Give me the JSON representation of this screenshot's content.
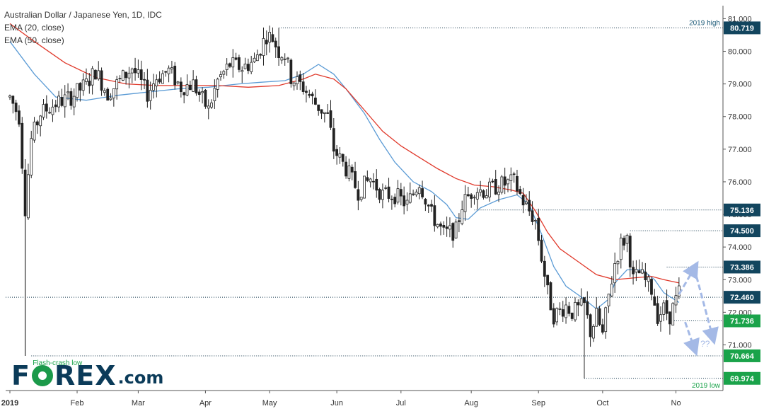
{
  "colors": {
    "ema20": "#5b9bd5",
    "ema50": "#e0392b",
    "level_dark": "#12455e",
    "level_green": "#1aa34a",
    "forecast_arrow": "#a4b9e6",
    "candle": "#222222",
    "grid_dotted": "#15384d"
  },
  "legend": {
    "title": "Australian Dollar / Japanese Yen, 1D, IDC",
    "ema20": "EMA (20, close)",
    "ema50": "EMA (50, close)"
  },
  "logo": {
    "text_left": "F",
    "text_right": "REX",
    "dotcom": ".com"
  },
  "chart_data": {
    "type": "candlestick",
    "title": "Australian Dollar / Japanese Yen, 1D, IDC",
    "y_axis_ticks": [
      "81.000",
      "80.000",
      "79.000",
      "78.000",
      "77.000",
      "76.000",
      "75.000",
      "74.000",
      "73.000",
      "72.000",
      "71.000"
    ],
    "ylim": [
      69.6,
      81.4
    ],
    "x_axis_ticks": [
      "2019",
      "Feb",
      "Mar",
      "Apr",
      "May",
      "Jun",
      "Jul",
      "Aug",
      "Sep",
      "Oct",
      "No"
    ],
    "series": [
      {
        "name": "EMA (20, close)",
        "values": [
          [
            0,
            80.3
          ],
          [
            8,
            79.3
          ],
          [
            15,
            78.6
          ],
          [
            25,
            78.5
          ],
          [
            35,
            78.65
          ],
          [
            45,
            78.75
          ],
          [
            55,
            78.85
          ],
          [
            65,
            78.9
          ],
          [
            75,
            79.0
          ],
          [
            82,
            79.05
          ],
          [
            90,
            79.1
          ],
          [
            96,
            79.3
          ],
          [
            101,
            79.6
          ],
          [
            106,
            79.3
          ],
          [
            110,
            78.85
          ],
          [
            116,
            78.1
          ],
          [
            121,
            77.3
          ],
          [
            126,
            76.6
          ],
          [
            132,
            76.0
          ],
          [
            138,
            75.7
          ],
          [
            143,
            75.3
          ],
          [
            146,
            74.9
          ],
          [
            150,
            74.85
          ],
          [
            154,
            75.2
          ],
          [
            160,
            75.45
          ],
          [
            166,
            75.6
          ],
          [
            170,
            75.3
          ],
          [
            174,
            74.4
          ],
          [
            178,
            73.4
          ],
          [
            182,
            72.8
          ],
          [
            188,
            72.4
          ],
          [
            192,
            72.1
          ],
          [
            196,
            72.4
          ],
          [
            198,
            72.9
          ],
          [
            202,
            73.3
          ],
          [
            207,
            73.3
          ],
          [
            211,
            73.0
          ],
          [
            214,
            72.6
          ],
          [
            219,
            72.3
          ]
        ]
      },
      {
        "name": "EMA (50, close)",
        "values": [
          [
            0,
            80.85
          ],
          [
            8,
            80.3
          ],
          [
            18,
            79.65
          ],
          [
            28,
            79.2
          ],
          [
            38,
            79.0
          ],
          [
            48,
            78.95
          ],
          [
            58,
            78.95
          ],
          [
            68,
            78.95
          ],
          [
            78,
            78.9
          ],
          [
            88,
            78.95
          ],
          [
            96,
            79.15
          ],
          [
            100,
            79.3
          ],
          [
            106,
            79.15
          ],
          [
            110,
            78.85
          ],
          [
            116,
            78.2
          ],
          [
            122,
            77.55
          ],
          [
            128,
            77.1
          ],
          [
            134,
            76.75
          ],
          [
            140,
            76.4
          ],
          [
            146,
            76.1
          ],
          [
            152,
            75.9
          ],
          [
            158,
            75.85
          ],
          [
            164,
            75.75
          ],
          [
            168,
            75.65
          ],
          [
            172,
            75.1
          ],
          [
            176,
            74.45
          ],
          [
            180,
            73.95
          ],
          [
            186,
            73.55
          ],
          [
            192,
            73.15
          ],
          [
            198,
            73.0
          ],
          [
            204,
            73.05
          ],
          [
            210,
            73.1
          ],
          [
            214,
            73.0
          ],
          [
            219,
            72.9
          ]
        ]
      }
    ],
    "price_path": [
      [
        0,
        78.6
      ],
      [
        3,
        78.0
      ],
      [
        5,
        75.2
      ],
      [
        7,
        77.3
      ],
      [
        10,
        78.1
      ],
      [
        15,
        78.4
      ],
      [
        20,
        78.6
      ],
      [
        25,
        79.0
      ],
      [
        28,
        79.4
      ],
      [
        32,
        78.7
      ],
      [
        35,
        79.0
      ],
      [
        40,
        79.5
      ],
      [
        45,
        78.7
      ],
      [
        48,
        79.2
      ],
      [
        52,
        79.4
      ],
      [
        56,
        78.9
      ],
      [
        60,
        79.0
      ],
      [
        65,
        78.2
      ],
      [
        68,
        79.1
      ],
      [
        72,
        79.6
      ],
      [
        76,
        79.5
      ],
      [
        80,
        79.7
      ],
      [
        84,
        80.5
      ],
      [
        86,
        80.4
      ],
      [
        88,
        80.0
      ],
      [
        90,
        79.9
      ],
      [
        92,
        79.2
      ],
      [
        96,
        78.9
      ],
      [
        100,
        78.4
      ],
      [
        104,
        78.0
      ],
      [
        106,
        77.0
      ],
      [
        110,
        76.4
      ],
      [
        114,
        75.7
      ],
      [
        118,
        76.1
      ],
      [
        122,
        75.6
      ],
      [
        126,
        75.6
      ],
      [
        130,
        75.3
      ],
      [
        134,
        76.0
      ],
      [
        138,
        75.0
      ],
      [
        142,
        74.4
      ],
      [
        146,
        74.5
      ],
      [
        148,
        75.3
      ],
      [
        152,
        75.8
      ],
      [
        156,
        75.7
      ],
      [
        160,
        75.9
      ],
      [
        165,
        76.0
      ],
      [
        168,
        75.4
      ],
      [
        172,
        74.8
      ],
      [
        176,
        72.6
      ],
      [
        178,
        71.9
      ],
      [
        182,
        72.2
      ],
      [
        184,
        72.0
      ],
      [
        188,
        72.2
      ],
      [
        190,
        71.4
      ],
      [
        192,
        71.9
      ],
      [
        194,
        71.3
      ],
      [
        196,
        72.5
      ],
      [
        198,
        73.5
      ],
      [
        200,
        74.1
      ],
      [
        202,
        74.3
      ],
      [
        204,
        73.0
      ],
      [
        206,
        73.2
      ],
      [
        210,
        72.7
      ],
      [
        212,
        71.9
      ],
      [
        214,
        72.1
      ],
      [
        216,
        71.9
      ],
      [
        219,
        72.6
      ]
    ],
    "levels": [
      {
        "label": "80.719",
        "value": 80.719,
        "color": "dark",
        "start": 88,
        "note": "2019 high"
      },
      {
        "label": "75.136",
        "value": 75.136,
        "color": "dark",
        "start": 152,
        "note": ""
      },
      {
        "label": "74.500",
        "value": 74.5,
        "color": "dark",
        "start": 203,
        "note": ""
      },
      {
        "label": "73.386",
        "value": 73.386,
        "color": "dark",
        "start": 215,
        "note": ""
      },
      {
        "label": "72.460",
        "value": 72.46,
        "color": "dark",
        "start": 0,
        "note": ""
      },
      {
        "label": "71.736",
        "value": 71.736,
        "color": "green",
        "start": 216,
        "note": ""
      },
      {
        "label": "70.664",
        "value": 70.664,
        "color": "green",
        "start": 7,
        "note": "Flash-crash low"
      },
      {
        "label": "69.974",
        "value": 69.974,
        "color": "green",
        "start": 188,
        "note": "2019 low"
      }
    ],
    "annotations": {
      "high_note": "2019 high",
      "flash_note": "Flash-crash low",
      "low_note": "2019 low",
      "question": "??"
    },
    "forecast": {
      "up": [
        [
          219,
          72.55
        ],
        [
          224,
          73.35
        ]
      ],
      "down1": [
        [
          224,
          73.35
        ],
        [
          230,
          71.25
        ]
      ],
      "down2": [
        [
          221,
          71.7
        ],
        [
          224,
          70.9
        ]
      ]
    },
    "grid": false,
    "legend_position": "top-left"
  }
}
